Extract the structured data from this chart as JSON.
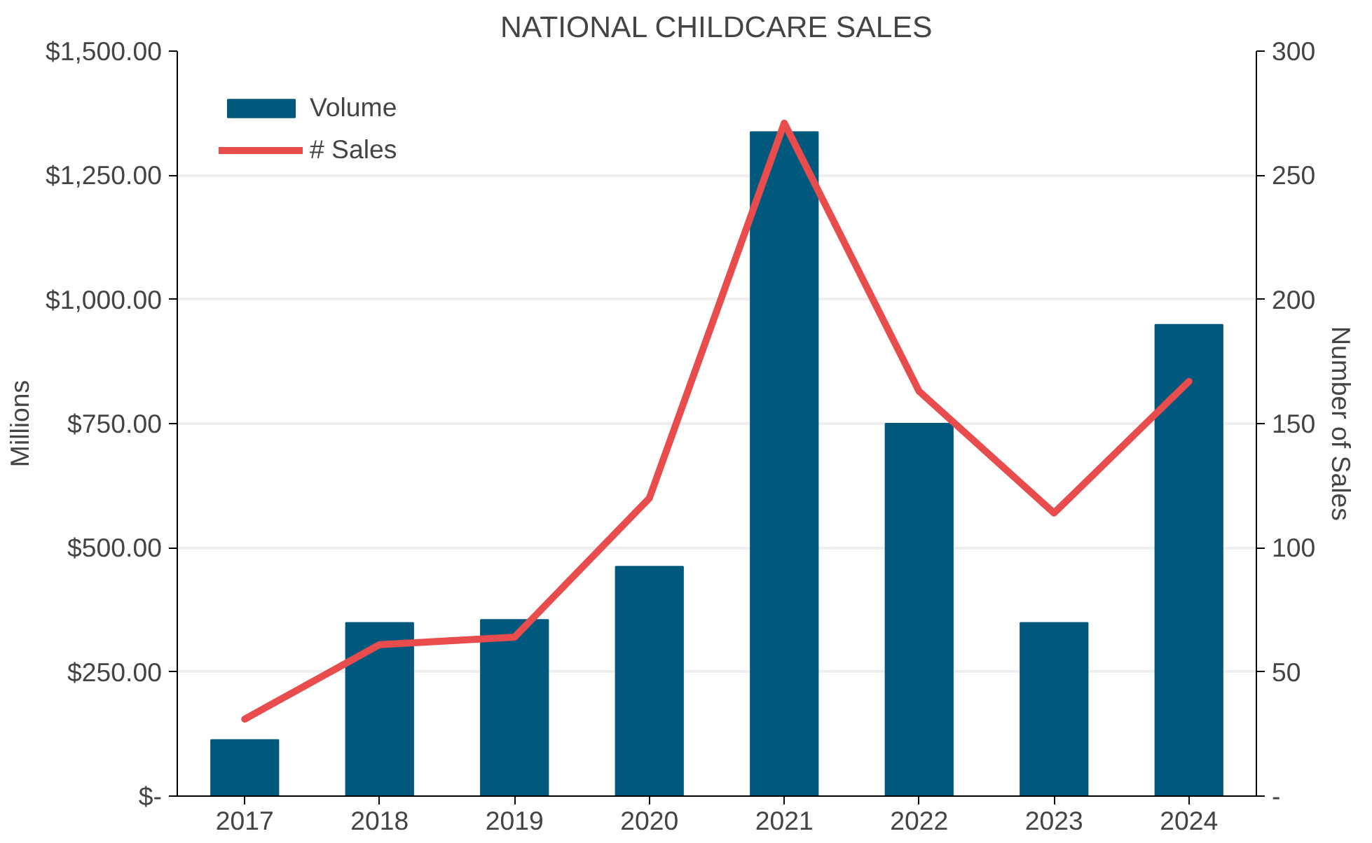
{
  "chart_data": {
    "type": "bar",
    "title": "NATIONAL CHILDCARE SALES",
    "ylabel": "Millions",
    "y2label": "Number of Sales",
    "categories": [
      "2017",
      "2018",
      "2019",
      "2020",
      "2021",
      "2022",
      "2023",
      "2024"
    ],
    "series": [
      {
        "name": "Volume",
        "color": "#00587c",
        "values": [
          113,
          349,
          355,
          462,
          1337,
          750,
          349,
          949
        ]
      },
      {
        "name": "# Sales",
        "type": "line",
        "axis": "y2",
        "color": "#e84c4c",
        "values": [
          31,
          61,
          64,
          120,
          271,
          163,
          114,
          167
        ]
      }
    ],
    "ylim": [
      0,
      1500
    ],
    "yticks": [
      {
        "value": 0,
        "label": "$-"
      },
      {
        "value": 250,
        "label": "$250.00"
      },
      {
        "value": 500,
        "label": "$500.00"
      },
      {
        "value": 750,
        "label": "$750.00"
      },
      {
        "value": 1000,
        "label": "$1,000.00"
      },
      {
        "value": 1250,
        "label": "$1,250.00"
      },
      {
        "value": 1500,
        "label": "$1,500.00"
      }
    ],
    "y2lim": [
      0,
      300
    ],
    "y2ticks": [
      {
        "value": 0,
        "label": "-"
      },
      50,
      100,
      150,
      200,
      250,
      300
    ],
    "grid": "y",
    "legend": "top left",
    "marker": "none",
    "line_style": "solid"
  }
}
